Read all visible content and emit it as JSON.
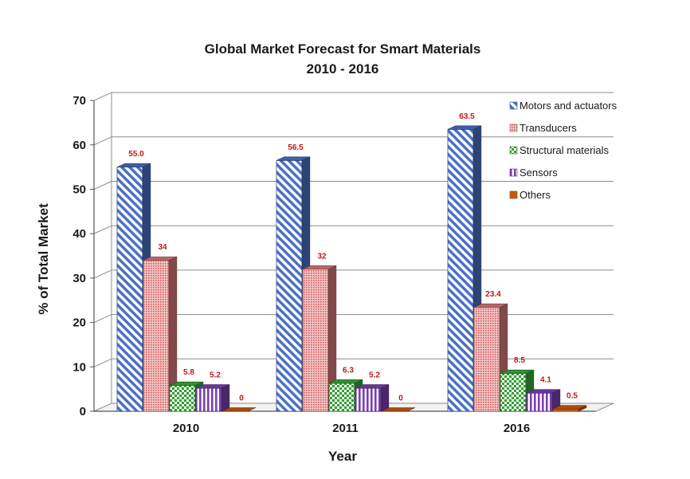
{
  "chart_data": {
    "type": "bar",
    "title": "Global Market Forecast for Smart Materials",
    "subtitle": "2010 - 2016",
    "xlabel": "Year",
    "ylabel": "% of Total Market",
    "categories": [
      "2010",
      "2011",
      "2016"
    ],
    "ylim": [
      0,
      70
    ],
    "yticks": [
      "0",
      "10",
      "20",
      "30",
      "40",
      "50",
      "60",
      "70"
    ],
    "grid": true,
    "legend_position": "top-right",
    "series": [
      {
        "name": "Motors and actuators",
        "color": "#4a70c4",
        "pattern": "diagonal-stripes",
        "values": [
          55.0,
          56.5,
          63.5
        ],
        "labels": [
          "55.0",
          "56.5",
          "63.5"
        ]
      },
      {
        "name": "Transducers",
        "color": "#d77a7a",
        "pattern": "fine-dots",
        "values": [
          34,
          32,
          23.4
        ],
        "labels": [
          "34",
          "32",
          "23.4"
        ]
      },
      {
        "name": "Structural materials",
        "color": "#3aaa3a",
        "pattern": "checker",
        "values": [
          5.8,
          6.3,
          8.5
        ],
        "labels": [
          "5.8",
          "6.3",
          "8.5"
        ]
      },
      {
        "name": "Sensors",
        "color": "#7b3fb0",
        "pattern": "vertical-stripes",
        "values": [
          5.2,
          5.2,
          4.1
        ],
        "labels": [
          "5.2",
          "5.2",
          "4.1"
        ]
      },
      {
        "name": "Others",
        "color": "#c85a10",
        "pattern": "solid",
        "values": [
          0,
          0,
          0.5
        ],
        "labels": [
          "0",
          "0",
          "0.5"
        ]
      }
    ]
  }
}
